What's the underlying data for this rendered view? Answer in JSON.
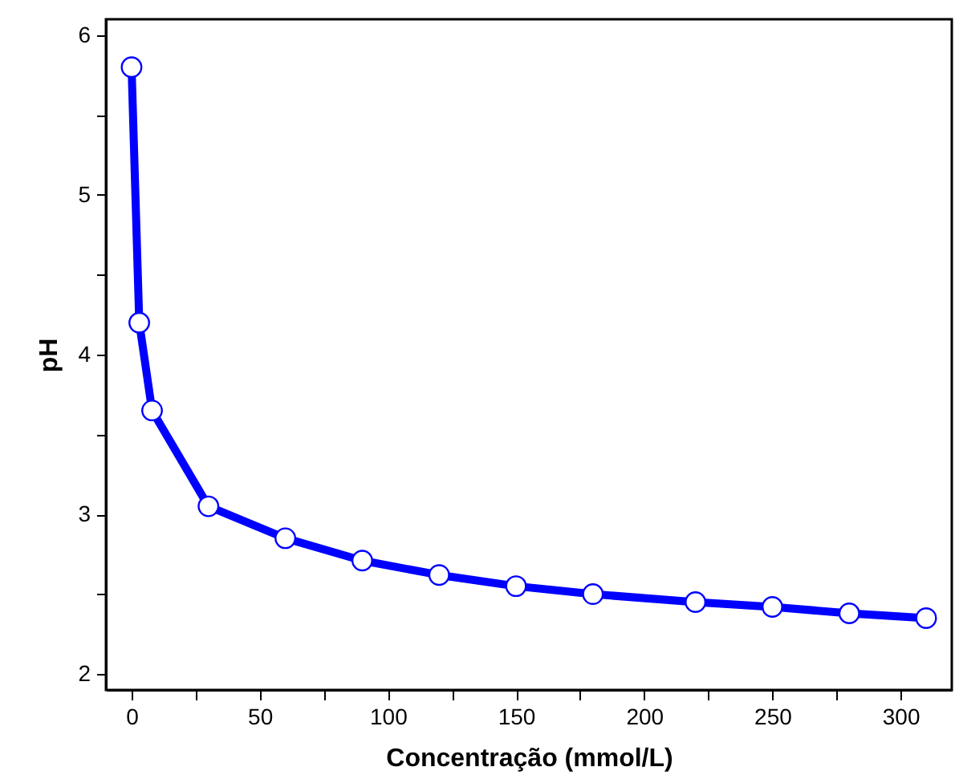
{
  "chart_data": {
    "type": "line",
    "xlabel": "Concentração (mmol/L)",
    "ylabel": "pH",
    "x": [
      0,
      3,
      8,
      30,
      60,
      90,
      120,
      150,
      180,
      220,
      250,
      280,
      310
    ],
    "series": [
      {
        "color": "#0000ff",
        "values": [
          5.8,
          4.2,
          3.65,
          3.05,
          2.85,
          2.71,
          2.62,
          2.55,
          2.5,
          2.45,
          2.42,
          2.38,
          2.35
        ]
      }
    ],
    "xlim": [
      -10,
      320
    ],
    "xticks": [
      0,
      {
        "value": 25,
        "label": null
      },
      50,
      {
        "value": 75,
        "label": null
      },
      100,
      {
        "value": 125,
        "label": null
      },
      150,
      {
        "value": 175,
        "label": null
      },
      200,
      {
        "value": 225,
        "label": null
      },
      250,
      {
        "value": 275,
        "label": null
      },
      300
    ],
    "ylim": [
      1.9,
      6.1
    ],
    "yticks": [
      2,
      {
        "value": 2.5,
        "label": null
      },
      3,
      {
        "value": 3.5,
        "label": null
      },
      4,
      {
        "value": 4.5,
        "label": null
      },
      5,
      {
        "value": 5.5,
        "label": null
      },
      6
    ],
    "grid": false,
    "marker": "circle",
    "line_style": "solid"
  }
}
